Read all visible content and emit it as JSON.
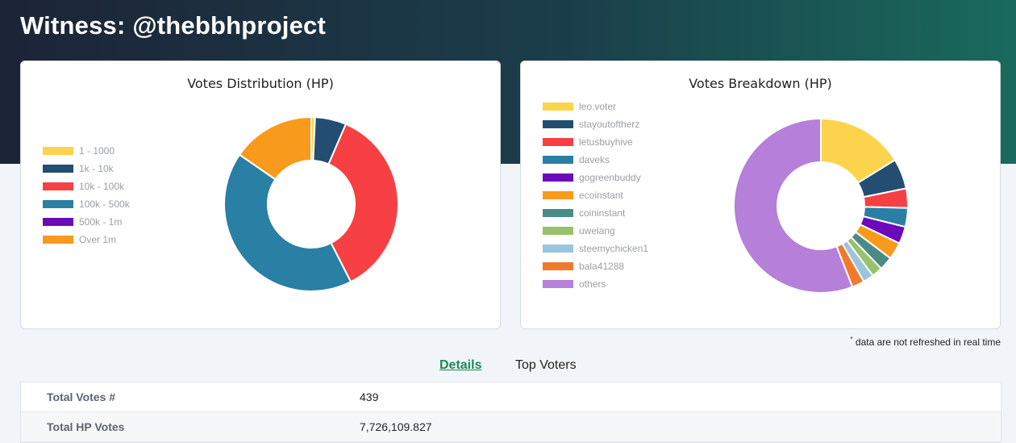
{
  "page": {
    "title": "Witness: @thebbhproject"
  },
  "note": "data are not refreshed in real time",
  "tabs": {
    "details": "Details",
    "top_voters": "Top Voters"
  },
  "details": [
    {
      "label": "Total Votes #",
      "value": "439"
    },
    {
      "label": "Total HP Votes",
      "value": "7,726,109.827"
    }
  ],
  "chart_data": [
    {
      "type": "pie",
      "donut": true,
      "title": "Votes Distribution (HP)",
      "legend_position": "left",
      "categories": [
        "1 - 1000",
        "1k - 10k",
        "10k - 100k",
        "100k - 500k",
        "500k - 1m",
        "Over 1m"
      ],
      "values": [
        0.7,
        5.8,
        36.0,
        42.1,
        0,
        15.4
      ],
      "colors": [
        "#fcd34d",
        "#234e72",
        "#f64044",
        "#2a7fa4",
        "#6c0ab9",
        "#f89a1c"
      ]
    },
    {
      "type": "pie",
      "donut": true,
      "title": "Votes Breakdown (HP)",
      "legend_position": "left",
      "categories": [
        "leo.voter",
        "stayoutoftherz",
        "letusbuyhive",
        "daveks",
        "gogreenbuddy",
        "ecoinstant",
        "coininstant",
        "uwelang",
        "steemychicken1",
        "bala41288",
        "others"
      ],
      "values": [
        16.2,
        5.6,
        3.6,
        3.5,
        3.2,
        3.2,
        2.5,
        2.0,
        2.0,
        2.3,
        55.9
      ],
      "colors": [
        "#fcd34d",
        "#234e72",
        "#f64044",
        "#2a7fa4",
        "#6c0ab9",
        "#f89a1c",
        "#4a8a87",
        "#97c16a",
        "#9ac5dc",
        "#f07a2c",
        "#b57fda"
      ]
    }
  ]
}
